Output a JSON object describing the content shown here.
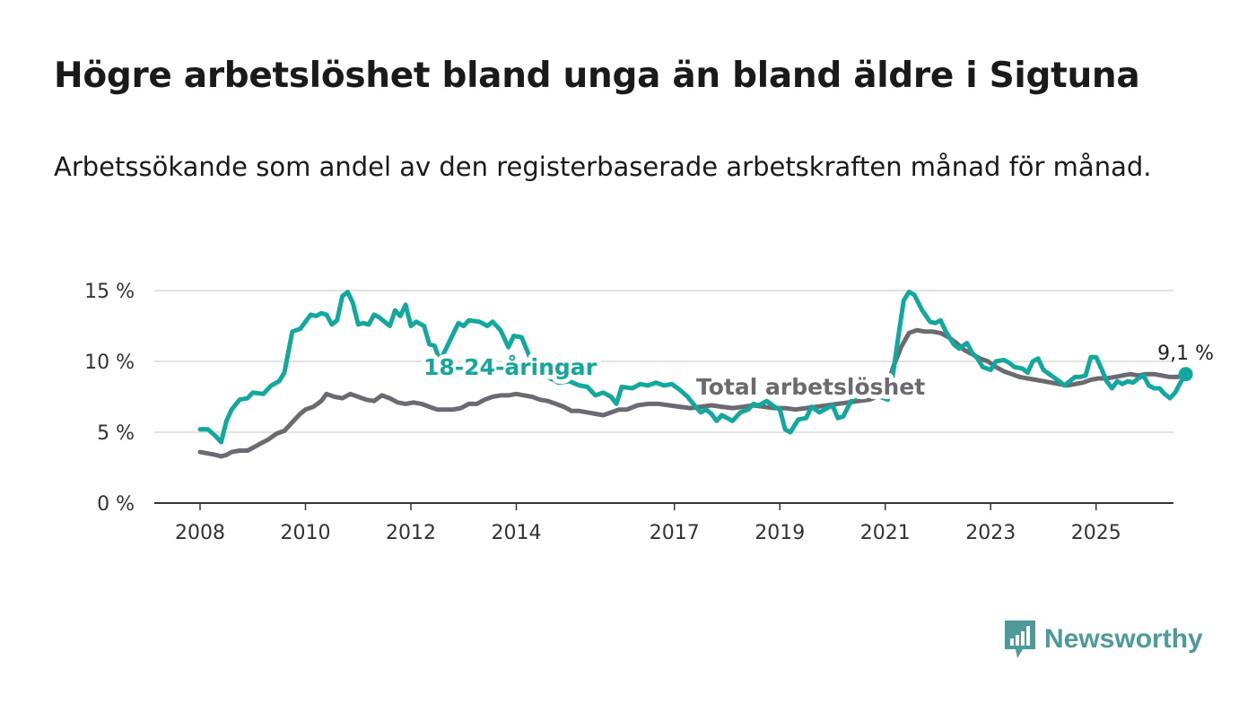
{
  "title": "Högre arbetslöshet bland unga än bland äldre i Sigtuna",
  "subtitle": "Arbetssökande som andel av den registerbaserade arbetskraften månad för månad.",
  "brand": {
    "name": "Newsworthy",
    "color": "#4d9a9a",
    "icon": "bar-chart-logo-icon"
  },
  "chart_data": {
    "type": "line",
    "y_ticks": [
      "0 %",
      "5 %",
      "10 %",
      "15 %"
    ],
    "ylim": [
      0,
      15
    ],
    "x_ticks": [
      "2008",
      "2010",
      "2012",
      "2014",
      "2017",
      "2019",
      "2021",
      "2023",
      "2025"
    ],
    "grid": true,
    "series": [
      {
        "name": "18-24-åringar",
        "color": "#13a89e",
        "points": [
          [
            2008.0,
            5.2
          ],
          [
            2008.15,
            5.2
          ],
          [
            2008.3,
            4.7
          ],
          [
            2008.4,
            4.3
          ],
          [
            2008.5,
            5.8
          ],
          [
            2008.6,
            6.6
          ],
          [
            2008.75,
            7.3
          ],
          [
            2008.9,
            7.4
          ],
          [
            2009.0,
            7.8
          ],
          [
            2009.2,
            7.7
          ],
          [
            2009.35,
            8.3
          ],
          [
            2009.5,
            8.6
          ],
          [
            2009.6,
            9.2
          ],
          [
            2009.75,
            12.1
          ],
          [
            2009.9,
            12.3
          ],
          [
            2010.0,
            12.8
          ],
          [
            2010.1,
            13.3
          ],
          [
            2010.2,
            13.2
          ],
          [
            2010.3,
            13.4
          ],
          [
            2010.4,
            13.3
          ],
          [
            2010.5,
            12.6
          ],
          [
            2010.6,
            12.9
          ],
          [
            2010.7,
            14.6
          ],
          [
            2010.8,
            14.9
          ],
          [
            2010.9,
            14.1
          ],
          [
            2011.0,
            12.6
          ],
          [
            2011.1,
            12.7
          ],
          [
            2011.2,
            12.6
          ],
          [
            2011.3,
            13.3
          ],
          [
            2011.4,
            13.1
          ],
          [
            2011.5,
            12.8
          ],
          [
            2011.6,
            12.5
          ],
          [
            2011.7,
            13.6
          ],
          [
            2011.8,
            13.2
          ],
          [
            2011.9,
            14.0
          ],
          [
            2012.0,
            12.5
          ],
          [
            2012.1,
            12.8
          ],
          [
            2012.25,
            12.5
          ],
          [
            2012.35,
            11.2
          ],
          [
            2012.45,
            11.1
          ],
          [
            2012.55,
            10.0
          ],
          [
            2012.9,
            12.7
          ],
          [
            2013.0,
            12.5
          ],
          [
            2013.1,
            12.9
          ],
          [
            2013.3,
            12.8
          ],
          [
            2013.45,
            12.5
          ],
          [
            2013.55,
            12.8
          ],
          [
            2013.7,
            12.2
          ],
          [
            2013.85,
            11.0
          ],
          [
            2013.95,
            11.8
          ],
          [
            2014.1,
            11.7
          ],
          [
            2014.2,
            10.8
          ],
          [
            2014.4,
            9.0
          ],
          [
            2014.6,
            8.9
          ],
          [
            2014.8,
            8.5
          ],
          [
            2015.0,
            8.6
          ],
          [
            2015.2,
            8.3
          ],
          [
            2015.35,
            8.2
          ],
          [
            2015.5,
            7.6
          ],
          [
            2015.65,
            7.8
          ],
          [
            2015.8,
            7.5
          ],
          [
            2015.9,
            7.0
          ],
          [
            2016.0,
            8.2
          ],
          [
            2016.2,
            8.1
          ],
          [
            2016.35,
            8.4
          ],
          [
            2016.5,
            8.3
          ],
          [
            2016.65,
            8.5
          ],
          [
            2016.8,
            8.3
          ],
          [
            2016.95,
            8.4
          ],
          [
            2017.1,
            8.0
          ],
          [
            2017.25,
            7.5
          ],
          [
            2017.4,
            6.8
          ],
          [
            2017.5,
            6.4
          ],
          [
            2017.6,
            6.6
          ],
          [
            2017.7,
            6.3
          ],
          [
            2017.8,
            5.8
          ],
          [
            2017.9,
            6.2
          ],
          [
            2018.0,
            6.0
          ],
          [
            2018.1,
            5.8
          ],
          [
            2018.25,
            6.4
          ],
          [
            2018.4,
            6.6
          ],
          [
            2018.5,
            7.0
          ],
          [
            2018.6,
            6.9
          ],
          [
            2018.75,
            7.2
          ],
          [
            2018.9,
            6.8
          ],
          [
            2019.0,
            6.6
          ],
          [
            2019.1,
            5.2
          ],
          [
            2019.2,
            5.0
          ],
          [
            2019.35,
            5.9
          ],
          [
            2019.5,
            6.0
          ],
          [
            2019.6,
            6.8
          ],
          [
            2019.75,
            6.4
          ],
          [
            2019.9,
            6.7
          ],
          [
            2020.0,
            6.9
          ],
          [
            2020.1,
            6.0
          ],
          [
            2020.2,
            6.1
          ],
          [
            2020.35,
            7.2
          ],
          [
            2020.5,
            7.7
          ],
          [
            2020.7,
            7.8
          ],
          [
            2020.9,
            7.5
          ],
          [
            2021.05,
            7.3
          ],
          [
            2021.15,
            9.2
          ],
          [
            2021.25,
            11.8
          ],
          [
            2021.35,
            14.3
          ],
          [
            2021.45,
            14.9
          ],
          [
            2021.55,
            14.7
          ],
          [
            2021.7,
            13.6
          ],
          [
            2021.85,
            12.8
          ],
          [
            2021.95,
            12.7
          ],
          [
            2022.05,
            12.9
          ],
          [
            2022.15,
            12.1
          ],
          [
            2022.3,
            11.2
          ],
          [
            2022.4,
            10.9
          ],
          [
            2022.55,
            11.3
          ],
          [
            2022.65,
            10.6
          ],
          [
            2022.75,
            10.2
          ],
          [
            2022.85,
            9.6
          ],
          [
            2023.0,
            9.4
          ],
          [
            2023.1,
            10.0
          ],
          [
            2023.25,
            10.1
          ],
          [
            2023.35,
            9.9
          ],
          [
            2023.45,
            9.6
          ],
          [
            2023.6,
            9.5
          ],
          [
            2023.7,
            9.2
          ],
          [
            2023.8,
            10.0
          ],
          [
            2023.9,
            10.2
          ],
          [
            2024.0,
            9.4
          ],
          [
            2024.15,
            9.0
          ],
          [
            2024.3,
            8.6
          ],
          [
            2024.4,
            8.3
          ],
          [
            2024.5,
            8.6
          ],
          [
            2024.6,
            8.9
          ],
          [
            2024.7,
            8.9
          ],
          [
            2024.8,
            9.0
          ],
          [
            2024.9,
            10.3
          ],
          [
            2025.0,
            10.3
          ],
          [
            2025.1,
            9.5
          ],
          [
            2025.2,
            8.6
          ],
          [
            2025.3,
            8.1
          ],
          [
            2025.4,
            8.6
          ],
          [
            2025.5,
            8.4
          ],
          [
            2025.6,
            8.6
          ],
          [
            2025.7,
            8.5
          ],
          [
            2025.8,
            8.8
          ],
          [
            2025.9,
            9.0
          ],
          [
            2026.0,
            8.3
          ],
          [
            2026.1,
            8.1
          ],
          [
            2026.2,
            8.1
          ],
          [
            2026.3,
            7.7
          ],
          [
            2026.4,
            7.4
          ],
          [
            2026.5,
            7.8
          ],
          [
            2026.6,
            8.5
          ],
          [
            2026.7,
            9.1
          ]
        ]
      },
      {
        "name": "Total arbetslöshet",
        "color": "#6b6a70",
        "points": [
          [
            2008.0,
            3.6
          ],
          [
            2008.15,
            3.5
          ],
          [
            2008.3,
            3.4
          ],
          [
            2008.4,
            3.3
          ],
          [
            2008.5,
            3.4
          ],
          [
            2008.6,
            3.6
          ],
          [
            2008.75,
            3.7
          ],
          [
            2008.9,
            3.7
          ],
          [
            2009.0,
            3.9
          ],
          [
            2009.15,
            4.2
          ],
          [
            2009.3,
            4.5
          ],
          [
            2009.45,
            4.9
          ],
          [
            2009.6,
            5.1
          ],
          [
            2009.75,
            5.7
          ],
          [
            2009.9,
            6.3
          ],
          [
            2010.0,
            6.6
          ],
          [
            2010.15,
            6.8
          ],
          [
            2010.3,
            7.2
          ],
          [
            2010.4,
            7.7
          ],
          [
            2010.55,
            7.5
          ],
          [
            2010.7,
            7.4
          ],
          [
            2010.85,
            7.7
          ],
          [
            2011.0,
            7.5
          ],
          [
            2011.15,
            7.3
          ],
          [
            2011.3,
            7.2
          ],
          [
            2011.45,
            7.6
          ],
          [
            2011.6,
            7.4
          ],
          [
            2011.75,
            7.1
          ],
          [
            2011.9,
            7.0
          ],
          [
            2012.05,
            7.1
          ],
          [
            2012.2,
            7.0
          ],
          [
            2012.35,
            6.8
          ],
          [
            2012.5,
            6.6
          ],
          [
            2012.65,
            6.6
          ],
          [
            2012.8,
            6.6
          ],
          [
            2012.95,
            6.7
          ],
          [
            2013.1,
            7.0
          ],
          [
            2013.25,
            7.0
          ],
          [
            2013.4,
            7.3
          ],
          [
            2013.55,
            7.5
          ],
          [
            2013.7,
            7.6
          ],
          [
            2013.85,
            7.6
          ],
          [
            2014.0,
            7.7
          ],
          [
            2014.15,
            7.6
          ],
          [
            2014.3,
            7.5
          ],
          [
            2014.45,
            7.3
          ],
          [
            2014.6,
            7.2
          ],
          [
            2014.75,
            7.0
          ],
          [
            2014.9,
            6.8
          ],
          [
            2015.05,
            6.5
          ],
          [
            2015.2,
            6.5
          ],
          [
            2015.35,
            6.4
          ],
          [
            2015.5,
            6.3
          ],
          [
            2015.65,
            6.2
          ],
          [
            2015.8,
            6.4
          ],
          [
            2015.95,
            6.6
          ],
          [
            2016.1,
            6.6
          ],
          [
            2016.3,
            6.9
          ],
          [
            2016.5,
            7.0
          ],
          [
            2016.7,
            7.0
          ],
          [
            2016.9,
            6.9
          ],
          [
            2017.1,
            6.8
          ],
          [
            2017.3,
            6.7
          ],
          [
            2017.5,
            6.8
          ],
          [
            2017.7,
            6.9
          ],
          [
            2017.9,
            6.8
          ],
          [
            2018.1,
            6.7
          ],
          [
            2018.3,
            6.8
          ],
          [
            2018.5,
            6.9
          ],
          [
            2018.7,
            6.8
          ],
          [
            2018.9,
            6.7
          ],
          [
            2019.1,
            6.7
          ],
          [
            2019.3,
            6.6
          ],
          [
            2019.5,
            6.7
          ],
          [
            2019.7,
            6.8
          ],
          [
            2019.9,
            6.9
          ],
          [
            2020.1,
            7.0
          ],
          [
            2020.3,
            7.1
          ],
          [
            2020.5,
            7.2
          ],
          [
            2020.7,
            7.3
          ],
          [
            2020.9,
            7.6
          ],
          [
            2021.05,
            8.4
          ],
          [
            2021.15,
            9.6
          ],
          [
            2021.3,
            11.0
          ],
          [
            2021.45,
            12.0
          ],
          [
            2021.6,
            12.2
          ],
          [
            2021.75,
            12.1
          ],
          [
            2021.9,
            12.1
          ],
          [
            2022.05,
            12.0
          ],
          [
            2022.2,
            11.7
          ],
          [
            2022.35,
            11.3
          ],
          [
            2022.5,
            10.8
          ],
          [
            2022.65,
            10.5
          ],
          [
            2022.8,
            10.2
          ],
          [
            2022.95,
            10.0
          ],
          [
            2023.1,
            9.6
          ],
          [
            2023.25,
            9.3
          ],
          [
            2023.4,
            9.1
          ],
          [
            2023.55,
            8.9
          ],
          [
            2023.7,
            8.8
          ],
          [
            2023.85,
            8.7
          ],
          [
            2024.0,
            8.6
          ],
          [
            2024.15,
            8.5
          ],
          [
            2024.3,
            8.4
          ],
          [
            2024.45,
            8.3
          ],
          [
            2024.6,
            8.4
          ],
          [
            2024.75,
            8.5
          ],
          [
            2024.9,
            8.7
          ],
          [
            2025.05,
            8.8
          ],
          [
            2025.2,
            8.8
          ],
          [
            2025.35,
            8.9
          ],
          [
            2025.5,
            9.0
          ],
          [
            2025.65,
            9.1
          ],
          [
            2025.8,
            9.0
          ],
          [
            2025.95,
            9.1
          ],
          [
            2026.1,
            9.1
          ],
          [
            2026.25,
            9.0
          ],
          [
            2026.4,
            8.9
          ],
          [
            2026.55,
            8.9
          ],
          [
            2026.7,
            9.1
          ]
        ]
      }
    ],
    "end_label": "9,1 %",
    "series_labels": {
      "young": "18-24-åringar",
      "total": "Total arbetslöshet"
    }
  }
}
